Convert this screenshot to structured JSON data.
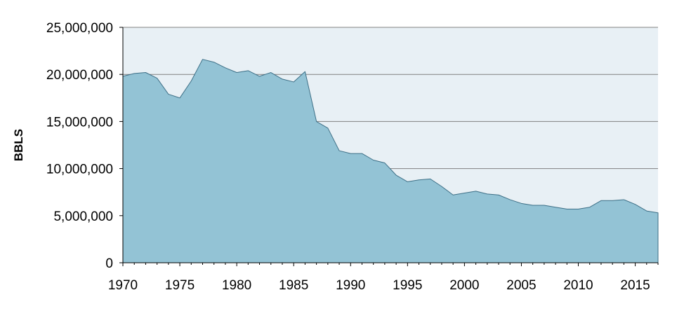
{
  "colors": {
    "area_fill": "#93c3d5",
    "area_stroke": "#3d6f86",
    "plot_background": "#e8f0f5",
    "gridline": "#808080"
  },
  "chart_data": {
    "type": "area",
    "title": "",
    "xlabel": "",
    "ylabel": "BBLS",
    "xlim": [
      1970,
      2017
    ],
    "ylim": [
      0,
      25000000
    ],
    "grid": true,
    "legend": "none",
    "x_ticks": [
      1970,
      1975,
      1980,
      1985,
      1990,
      1995,
      2000,
      2005,
      2010,
      2015
    ],
    "x_tick_labels": [
      "1970",
      "1975",
      "1980",
      "1985",
      "1990",
      "1995",
      "2000",
      "2005",
      "2010",
      "2015"
    ],
    "y_ticks": [
      0,
      5000000,
      10000000,
      15000000,
      20000000,
      25000000
    ],
    "y_tick_labels": [
      "0",
      "5,000,000",
      "10,000,000",
      "15,000,000",
      "20,000,000",
      "25,000,000"
    ],
    "x": [
      1970,
      1971,
      1972,
      1973,
      1974,
      1975,
      1976,
      1977,
      1978,
      1979,
      1980,
      1981,
      1982,
      1983,
      1984,
      1985,
      1986,
      1987,
      1988,
      1989,
      1990,
      1991,
      1992,
      1993,
      1994,
      1995,
      1996,
      1997,
      1998,
      1999,
      2000,
      2001,
      2002,
      2003,
      2004,
      2005,
      2006,
      2007,
      2008,
      2009,
      2010,
      2011,
      2012,
      2013,
      2014,
      2015,
      2016,
      2017
    ],
    "values": [
      19800000,
      20100000,
      20200000,
      19600000,
      17900000,
      17500000,
      19300000,
      21600000,
      21300000,
      20700000,
      20200000,
      20400000,
      19800000,
      20200000,
      19500000,
      19200000,
      20300000,
      15000000,
      14300000,
      11900000,
      11600000,
      11600000,
      10900000,
      10600000,
      9300000,
      8600000,
      8800000,
      8900000,
      8100000,
      7200000,
      7400000,
      7600000,
      7300000,
      7200000,
      6700000,
      6300000,
      6100000,
      6100000,
      5900000,
      5700000,
      5700000,
      5900000,
      6600000,
      6600000,
      6700000,
      6200000,
      5500000,
      5300000
    ]
  }
}
